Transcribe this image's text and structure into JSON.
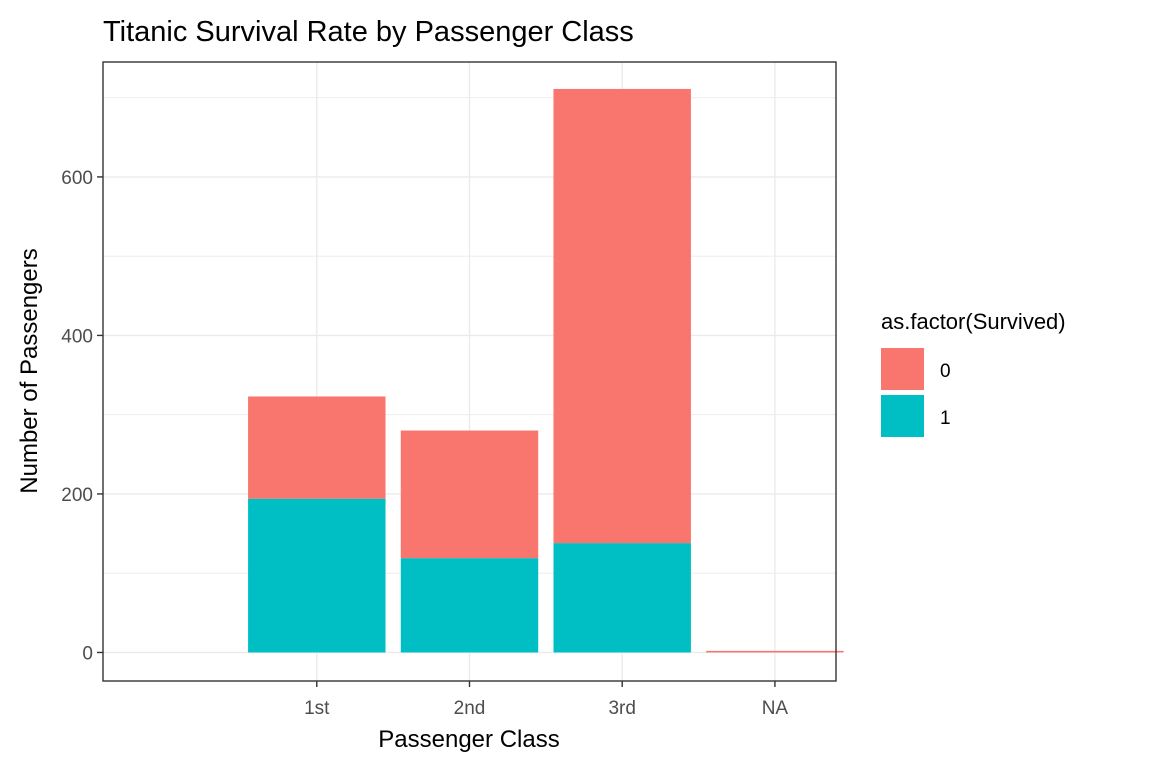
{
  "chart_data": {
    "type": "bar",
    "stacked": true,
    "title": "Titanic Survival Rate by Passenger Class",
    "xlabel": "Passenger Class",
    "ylabel": "Number of Passengers",
    "categories": [
      "1st",
      "2nd",
      "3rd",
      "NA"
    ],
    "ylim": [
      -36,
      745
    ],
    "yticks": [
      0,
      200,
      400,
      600
    ],
    "grid": true,
    "series": [
      {
        "name": "0",
        "color": "#F8766D",
        "values": [
          129,
          161,
          573,
          2
        ]
      },
      {
        "name": "1",
        "color": "#00BFC4",
        "values": [
          194,
          119,
          138,
          0
        ]
      }
    ],
    "legend": {
      "title": "as.factor(Survived)",
      "position": "right"
    }
  }
}
